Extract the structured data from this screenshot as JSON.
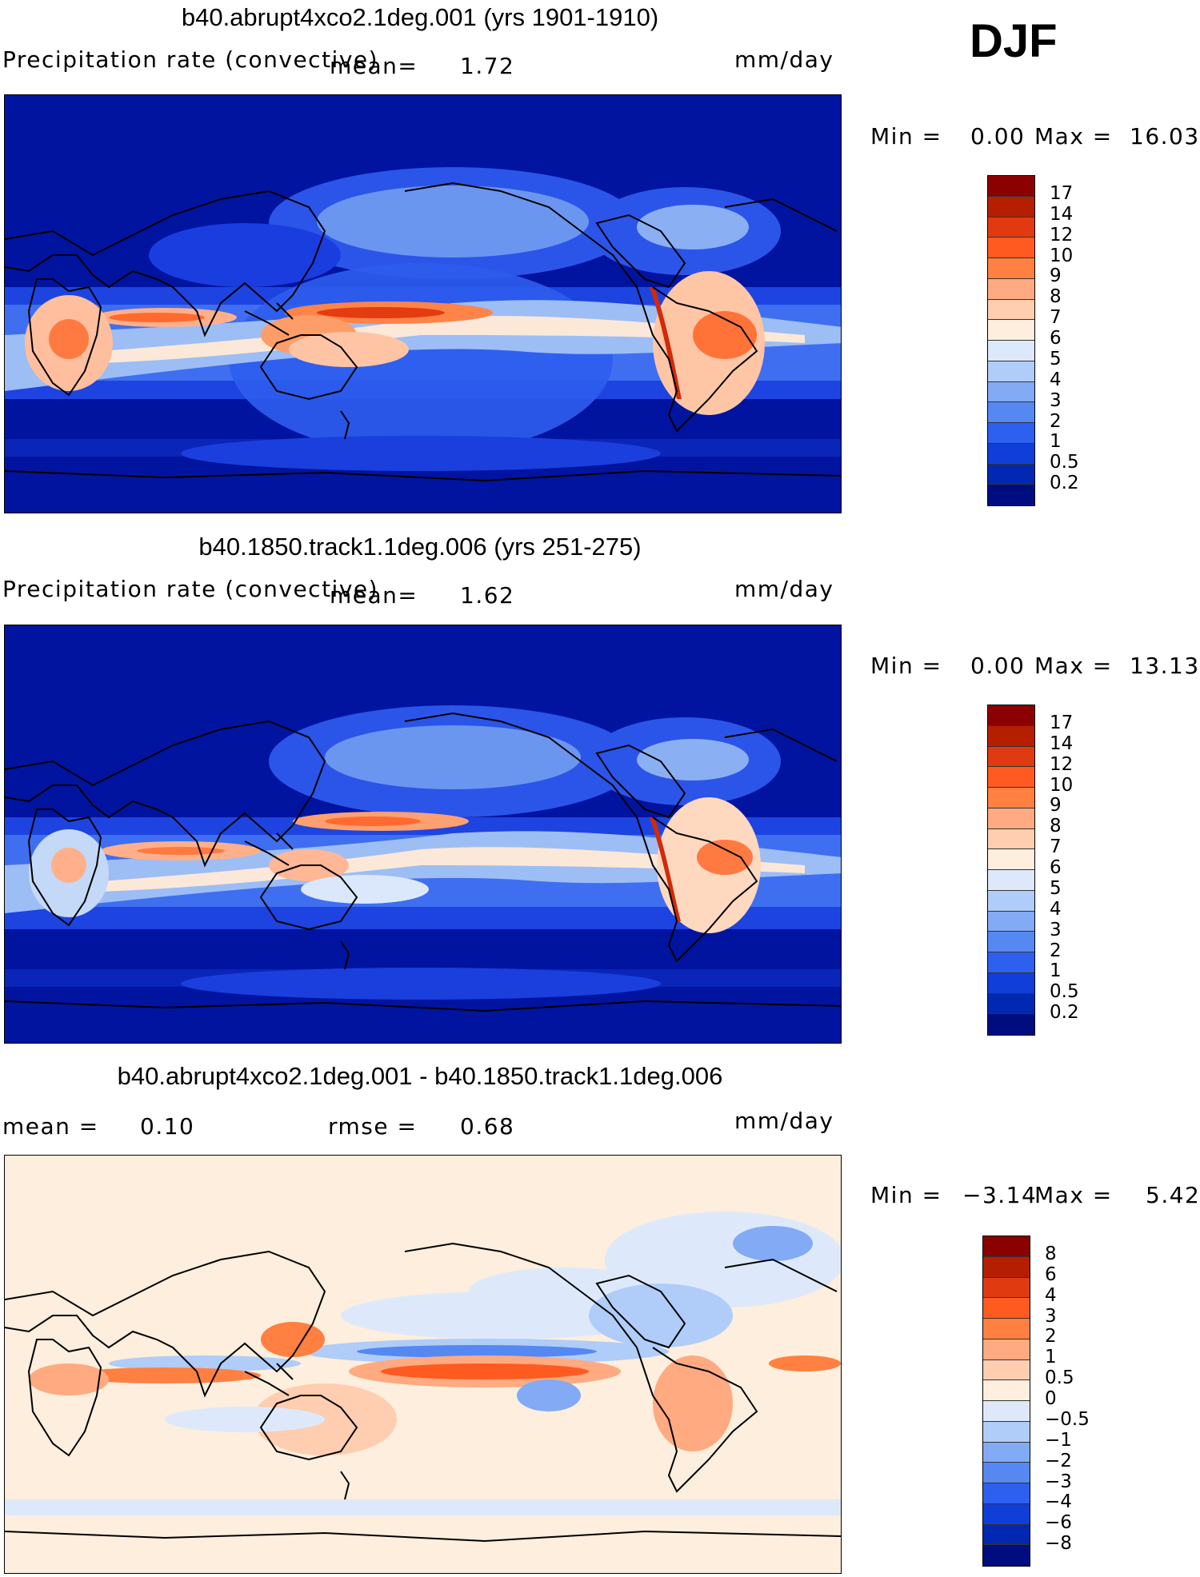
{
  "season": "DJF",
  "panels": [
    {
      "title": "b40.abrupt4xco2.1deg.001 (yrs 1901-1910)",
      "variable": "Precipitation rate (convective)",
      "stat1_label": "mean=",
      "stat1_value": "1.72",
      "stat2_label": "",
      "stat2_value": "",
      "units": "mm/day",
      "min_label": "Min =",
      "min_value": "0.00",
      "max_label": "Max =",
      "max_value": "16.03",
      "levels": [
        "17",
        "14",
        "12",
        "10",
        "9",
        "8",
        "7",
        "6",
        "5",
        "4",
        "3",
        "2",
        "1",
        "0.5",
        "0.2"
      ],
      "colors": [
        "#8b0000",
        "#b51f00",
        "#e03a10",
        "#ff5a20",
        "#ff8040",
        "#ffaa80",
        "#ffcdb0",
        "#fdeedd",
        "#dde9fb",
        "#b0ccf8",
        "#82aaf5",
        "#5588f0",
        "#2d60ee",
        "#103ed8",
        "#0028b0",
        "#000d80"
      ]
    },
    {
      "title": "b40.1850.track1.1deg.006 (yrs 251-275)",
      "variable": "Precipitation rate (convective)",
      "stat1_label": "mean=",
      "stat1_value": "1.62",
      "stat2_label": "",
      "stat2_value": "",
      "units": "mm/day",
      "min_label": "Min =",
      "min_value": "0.00",
      "max_label": "Max =",
      "max_value": "13.13",
      "levels": [
        "17",
        "14",
        "12",
        "10",
        "9",
        "8",
        "7",
        "6",
        "5",
        "4",
        "3",
        "2",
        "1",
        "0.5",
        "0.2"
      ],
      "colors": [
        "#8b0000",
        "#b51f00",
        "#e03a10",
        "#ff5a20",
        "#ff8040",
        "#ffaa80",
        "#ffcdb0",
        "#fdeedd",
        "#dde9fb",
        "#b0ccf8",
        "#82aaf5",
        "#5588f0",
        "#2d60ee",
        "#103ed8",
        "#0028b0",
        "#000d80"
      ]
    },
    {
      "title": "b40.abrupt4xco2.1deg.001 - b40.1850.track1.1deg.006",
      "variable": "",
      "stat1_label": "mean =",
      "stat1_value": "0.10",
      "stat2_label": "rmse =",
      "stat2_value": "0.68",
      "units": "mm/day",
      "min_label": "Min =",
      "min_value": "−3.14",
      "max_label": "Max =",
      "max_value": "5.42",
      "levels": [
        "8",
        "6",
        "4",
        "3",
        "2",
        "1",
        "0.5",
        "0",
        "−0.5",
        "−1",
        "−2",
        "−3",
        "−4",
        "−6",
        "−8"
      ],
      "colors": [
        "#8b0000",
        "#b51f00",
        "#e03a10",
        "#ff5a20",
        "#ff8040",
        "#ffaa80",
        "#ffcdb0",
        "#fdeedd",
        "#dde9fb",
        "#b0ccf8",
        "#82aaf5",
        "#5588f0",
        "#2d60ee",
        "#103ed8",
        "#0028b0",
        "#000d80"
      ]
    }
  ]
}
